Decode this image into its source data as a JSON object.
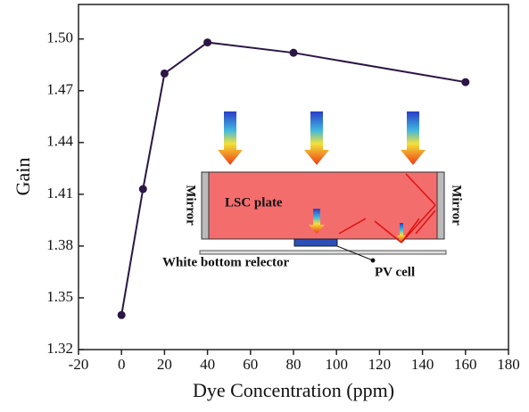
{
  "chart_data": {
    "type": "line",
    "x_label": "Dye Concentration (ppm)",
    "y_label": "Gain",
    "x": [
      0,
      10,
      20,
      40,
      80,
      160
    ],
    "series": [
      {
        "name": "Gain",
        "color": "#2b1645",
        "values": [
          1.34,
          1.413,
          1.48,
          1.498,
          1.492,
          1.475
        ]
      }
    ],
    "xlim": [
      -20,
      180
    ],
    "xticks": [
      -20,
      0,
      20,
      40,
      60,
      80,
      100,
      120,
      140,
      160,
      180
    ],
    "ylim": [
      1.32,
      1.52
    ],
    "yticks": [
      1.32,
      1.35,
      1.38,
      1.41,
      1.44,
      1.47,
      {
        "value": 1.5,
        "label": "1.50"
      }
    ],
    "grid": false,
    "annotations": [
      "LSC plate",
      "Mirror",
      "Mirror",
      "White bottom relector",
      "PV cell"
    ]
  }
}
